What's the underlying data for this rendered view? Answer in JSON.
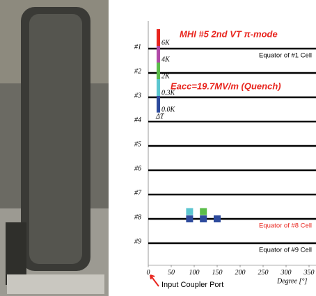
{
  "chart_data": {
    "type": "scatter",
    "title": "MHI #5  2nd VT  π-mode",
    "annotation": "Eacc=19.7MV/m (Quench)",
    "xlabel": "Degree [°]",
    "pointer_label": "Input Coupler Port",
    "xlim": [
      0,
      360
    ],
    "xticks": [
      0,
      50,
      100,
      150,
      200,
      250,
      300,
      350
    ],
    "ylim": [
      9.9,
      0
    ],
    "yticks": [
      {
        "value": 1,
        "label": "#1"
      },
      {
        "value": 2,
        "label": "#2"
      },
      {
        "value": 3,
        "label": "#3"
      },
      {
        "value": 4,
        "label": "#4"
      },
      {
        "value": 5,
        "label": "#5"
      },
      {
        "value": 6,
        "label": "#6"
      },
      {
        "value": 7,
        "label": "#7"
      },
      {
        "value": 8,
        "label": "#8"
      },
      {
        "value": 9,
        "label": "#9"
      }
    ],
    "line_color": "#000000",
    "equator_labels": [
      {
        "row": 1,
        "text": "Equator of #1 Cell",
        "color": "#000000"
      },
      {
        "row": 8,
        "text": "Equator of #8 Cell",
        "color": "#e8251e"
      },
      {
        "row": 9,
        "text": "Equator of #9 Cell",
        "color": "#000000"
      }
    ],
    "colorbar": {
      "label": "ΔT",
      "ticks": [
        {
          "value": 6,
          "label": "6K"
        },
        {
          "value": 4,
          "label": "4K"
        },
        {
          "value": 2,
          "label": "2K"
        },
        {
          "value": 0.3,
          "label": "0.3K"
        },
        {
          "value": 0,
          "label": "0.0K"
        }
      ],
      "colors": [
        "#e8251e",
        "#b04aa8",
        "#5bbd4a",
        "#5cc6d0",
        "#2d4a9c"
      ]
    },
    "points": {
      "x": [
        90,
        120,
        150,
        90,
        120
      ],
      "y": [
        8,
        8,
        8,
        7.7,
        7.7
      ],
      "values": [
        0,
        0,
        0,
        0.3,
        2
      ]
    }
  }
}
